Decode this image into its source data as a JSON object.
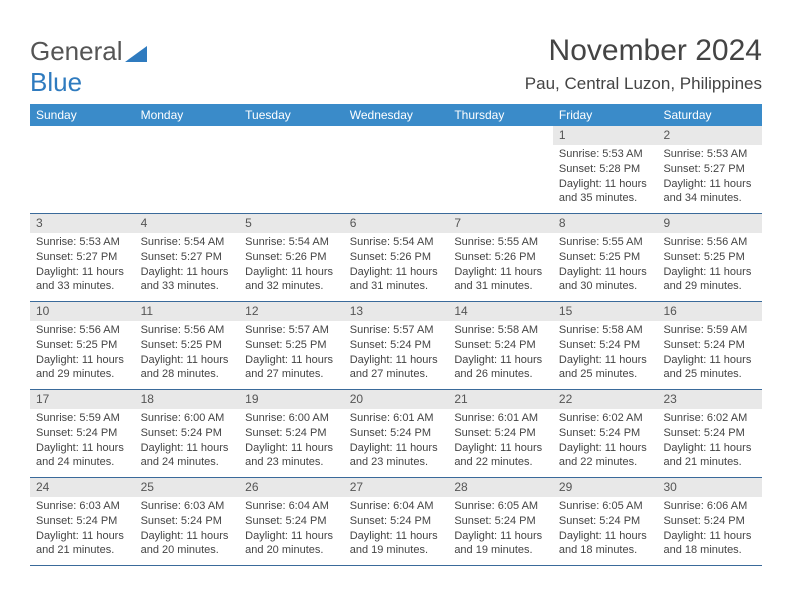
{
  "logo": {
    "text_general": "General",
    "text_blue": "Blue"
  },
  "title": "November 2024",
  "subtitle": "Pau, Central Luzon, Philippines",
  "colors": {
    "header_bg": "#3a8bc9",
    "header_text": "#ffffff",
    "daynum_bg": "#e8e8e8",
    "row_border": "#3a6a9a",
    "body_text": "#444444",
    "logo_gray": "#555555",
    "logo_blue": "#2f7bbf"
  },
  "weekdays": [
    "Sunday",
    "Monday",
    "Tuesday",
    "Wednesday",
    "Thursday",
    "Friday",
    "Saturday"
  ],
  "weeks": [
    [
      null,
      null,
      null,
      null,
      null,
      {
        "n": "1",
        "sr": "Sunrise: 5:53 AM",
        "ss": "Sunset: 5:28 PM",
        "d1": "Daylight: 11 hours",
        "d2": "and 35 minutes."
      },
      {
        "n": "2",
        "sr": "Sunrise: 5:53 AM",
        "ss": "Sunset: 5:27 PM",
        "d1": "Daylight: 11 hours",
        "d2": "and 34 minutes."
      }
    ],
    [
      {
        "n": "3",
        "sr": "Sunrise: 5:53 AM",
        "ss": "Sunset: 5:27 PM",
        "d1": "Daylight: 11 hours",
        "d2": "and 33 minutes."
      },
      {
        "n": "4",
        "sr": "Sunrise: 5:54 AM",
        "ss": "Sunset: 5:27 PM",
        "d1": "Daylight: 11 hours",
        "d2": "and 33 minutes."
      },
      {
        "n": "5",
        "sr": "Sunrise: 5:54 AM",
        "ss": "Sunset: 5:26 PM",
        "d1": "Daylight: 11 hours",
        "d2": "and 32 minutes."
      },
      {
        "n": "6",
        "sr": "Sunrise: 5:54 AM",
        "ss": "Sunset: 5:26 PM",
        "d1": "Daylight: 11 hours",
        "d2": "and 31 minutes."
      },
      {
        "n": "7",
        "sr": "Sunrise: 5:55 AM",
        "ss": "Sunset: 5:26 PM",
        "d1": "Daylight: 11 hours",
        "d2": "and 31 minutes."
      },
      {
        "n": "8",
        "sr": "Sunrise: 5:55 AM",
        "ss": "Sunset: 5:25 PM",
        "d1": "Daylight: 11 hours",
        "d2": "and 30 minutes."
      },
      {
        "n": "9",
        "sr": "Sunrise: 5:56 AM",
        "ss": "Sunset: 5:25 PM",
        "d1": "Daylight: 11 hours",
        "d2": "and 29 minutes."
      }
    ],
    [
      {
        "n": "10",
        "sr": "Sunrise: 5:56 AM",
        "ss": "Sunset: 5:25 PM",
        "d1": "Daylight: 11 hours",
        "d2": "and 29 minutes."
      },
      {
        "n": "11",
        "sr": "Sunrise: 5:56 AM",
        "ss": "Sunset: 5:25 PM",
        "d1": "Daylight: 11 hours",
        "d2": "and 28 minutes."
      },
      {
        "n": "12",
        "sr": "Sunrise: 5:57 AM",
        "ss": "Sunset: 5:25 PM",
        "d1": "Daylight: 11 hours",
        "d2": "and 27 minutes."
      },
      {
        "n": "13",
        "sr": "Sunrise: 5:57 AM",
        "ss": "Sunset: 5:24 PM",
        "d1": "Daylight: 11 hours",
        "d2": "and 27 minutes."
      },
      {
        "n": "14",
        "sr": "Sunrise: 5:58 AM",
        "ss": "Sunset: 5:24 PM",
        "d1": "Daylight: 11 hours",
        "d2": "and 26 minutes."
      },
      {
        "n": "15",
        "sr": "Sunrise: 5:58 AM",
        "ss": "Sunset: 5:24 PM",
        "d1": "Daylight: 11 hours",
        "d2": "and 25 minutes."
      },
      {
        "n": "16",
        "sr": "Sunrise: 5:59 AM",
        "ss": "Sunset: 5:24 PM",
        "d1": "Daylight: 11 hours",
        "d2": "and 25 minutes."
      }
    ],
    [
      {
        "n": "17",
        "sr": "Sunrise: 5:59 AM",
        "ss": "Sunset: 5:24 PM",
        "d1": "Daylight: 11 hours",
        "d2": "and 24 minutes."
      },
      {
        "n": "18",
        "sr": "Sunrise: 6:00 AM",
        "ss": "Sunset: 5:24 PM",
        "d1": "Daylight: 11 hours",
        "d2": "and 24 minutes."
      },
      {
        "n": "19",
        "sr": "Sunrise: 6:00 AM",
        "ss": "Sunset: 5:24 PM",
        "d1": "Daylight: 11 hours",
        "d2": "and 23 minutes."
      },
      {
        "n": "20",
        "sr": "Sunrise: 6:01 AM",
        "ss": "Sunset: 5:24 PM",
        "d1": "Daylight: 11 hours",
        "d2": "and 23 minutes."
      },
      {
        "n": "21",
        "sr": "Sunrise: 6:01 AM",
        "ss": "Sunset: 5:24 PM",
        "d1": "Daylight: 11 hours",
        "d2": "and 22 minutes."
      },
      {
        "n": "22",
        "sr": "Sunrise: 6:02 AM",
        "ss": "Sunset: 5:24 PM",
        "d1": "Daylight: 11 hours",
        "d2": "and 22 minutes."
      },
      {
        "n": "23",
        "sr": "Sunrise: 6:02 AM",
        "ss": "Sunset: 5:24 PM",
        "d1": "Daylight: 11 hours",
        "d2": "and 21 minutes."
      }
    ],
    [
      {
        "n": "24",
        "sr": "Sunrise: 6:03 AM",
        "ss": "Sunset: 5:24 PM",
        "d1": "Daylight: 11 hours",
        "d2": "and 21 minutes."
      },
      {
        "n": "25",
        "sr": "Sunrise: 6:03 AM",
        "ss": "Sunset: 5:24 PM",
        "d1": "Daylight: 11 hours",
        "d2": "and 20 minutes."
      },
      {
        "n": "26",
        "sr": "Sunrise: 6:04 AM",
        "ss": "Sunset: 5:24 PM",
        "d1": "Daylight: 11 hours",
        "d2": "and 20 minutes."
      },
      {
        "n": "27",
        "sr": "Sunrise: 6:04 AM",
        "ss": "Sunset: 5:24 PM",
        "d1": "Daylight: 11 hours",
        "d2": "and 19 minutes."
      },
      {
        "n": "28",
        "sr": "Sunrise: 6:05 AM",
        "ss": "Sunset: 5:24 PM",
        "d1": "Daylight: 11 hours",
        "d2": "and 19 minutes."
      },
      {
        "n": "29",
        "sr": "Sunrise: 6:05 AM",
        "ss": "Sunset: 5:24 PM",
        "d1": "Daylight: 11 hours",
        "d2": "and 18 minutes."
      },
      {
        "n": "30",
        "sr": "Sunrise: 6:06 AM",
        "ss": "Sunset: 5:24 PM",
        "d1": "Daylight: 11 hours",
        "d2": "and 18 minutes."
      }
    ]
  ]
}
